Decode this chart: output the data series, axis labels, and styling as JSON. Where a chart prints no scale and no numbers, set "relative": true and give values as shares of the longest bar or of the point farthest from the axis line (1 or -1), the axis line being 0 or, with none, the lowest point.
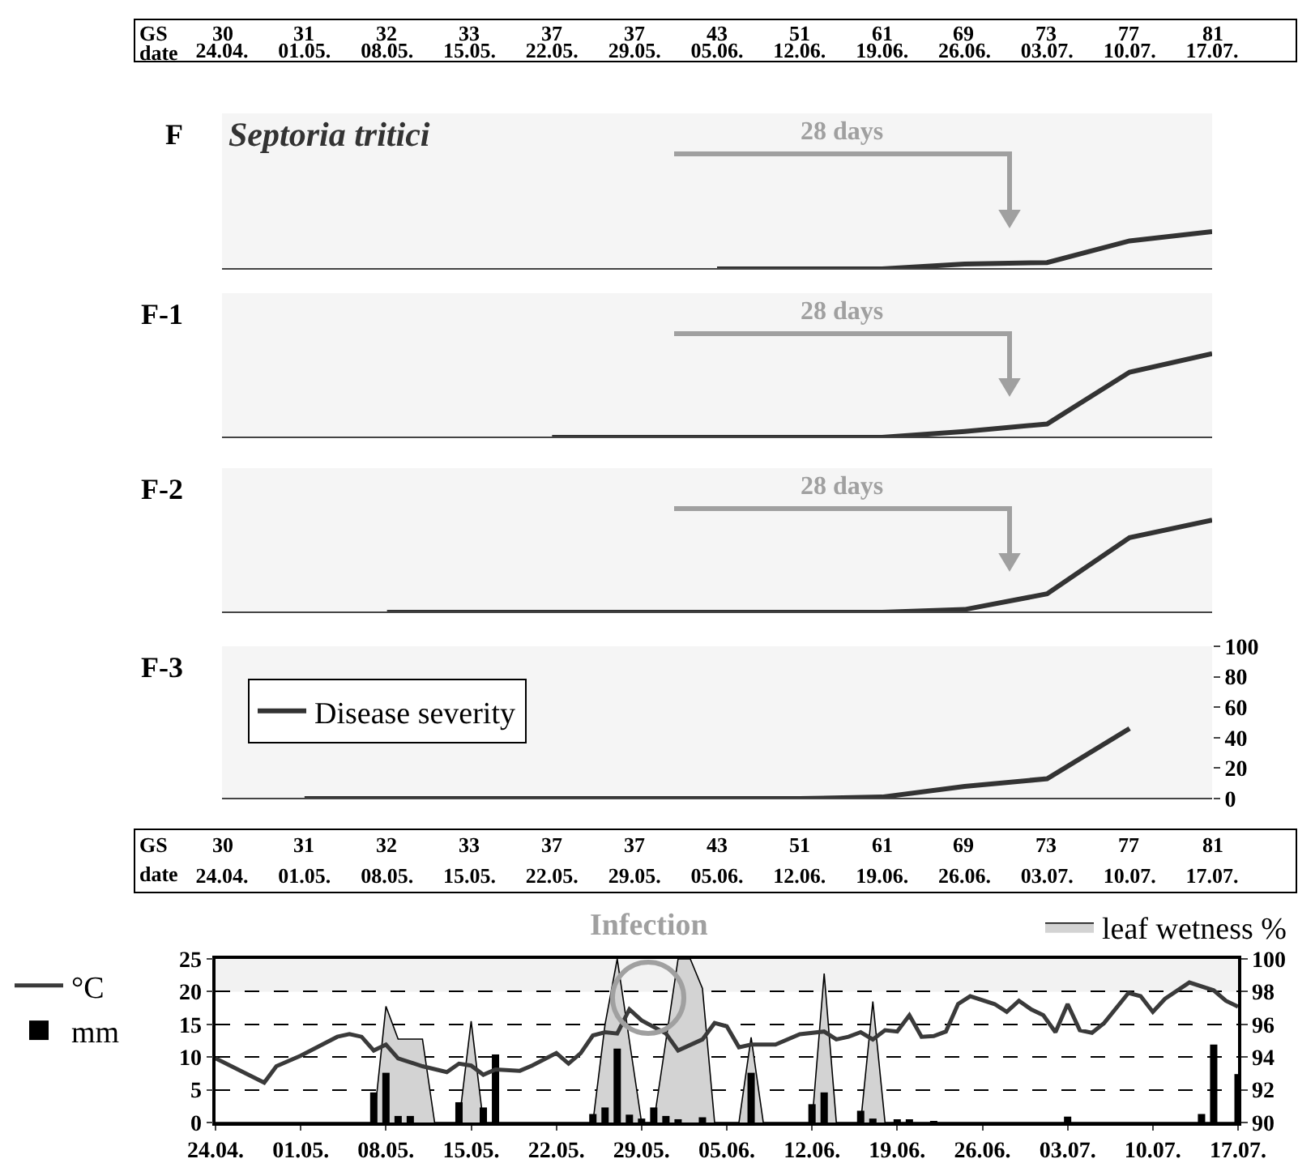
{
  "chart_data": [
    {
      "type": "line",
      "title": "F",
      "subtitle": "Septoria tritici",
      "categories": [
        "24.04.",
        "01.05.",
        "08.05.",
        "15.05.",
        "22.05.",
        "29.05.",
        "05.06.",
        "12.06.",
        "19.06.",
        "26.06.",
        "03.07.",
        "10.07.",
        "17.07."
      ],
      "series": [
        {
          "color": "#333333",
          "values": [
            null,
            null,
            null,
            null,
            null,
            null,
            0,
            0,
            0,
            0.13,
            0.17,
            0.75,
            1
          ]
        }
      ],
      "relative": true,
      "tick_labels": "x",
      "annotations": [
        "28 days",
        "GS",
        "date",
        "30",
        "31",
        "32",
        "33",
        "37",
        "37",
        "43",
        "51",
        "61",
        "69",
        "73",
        "77",
        "81"
      ]
    },
    {
      "type": "line",
      "title": "F-1",
      "categories": [
        "24.04.",
        "01.05.",
        "08.05.",
        "15.05.",
        "22.05.",
        "29.05.",
        "05.06.",
        "12.06.",
        "19.06.",
        "26.06.",
        "03.07.",
        "10.07.",
        "17.07."
      ],
      "series": [
        {
          "color": "#333333",
          "values": [
            null,
            null,
            null,
            null,
            0,
            0,
            0,
            0,
            0,
            0.07,
            0.16,
            0.78,
            1
          ]
        }
      ],
      "relative": true,
      "tick_labels": false,
      "annotations": [
        "28 days"
      ]
    },
    {
      "type": "line",
      "title": "F-2",
      "categories": [
        "24.04.",
        "01.05.",
        "08.05.",
        "15.05.",
        "22.05.",
        "29.05.",
        "05.06.",
        "12.06.",
        "19.06.",
        "26.06.",
        "03.07.",
        "10.07.",
        "17.07."
      ],
      "series": [
        {
          "color": "#333333",
          "values": [
            null,
            null,
            0,
            0,
            0,
            0,
            0,
            0,
            0,
            0.03,
            0.2,
            0.81,
            1
          ]
        }
      ],
      "relative": true,
      "tick_labels": false,
      "annotations": [
        "28 days"
      ]
    },
    {
      "type": "line",
      "title": "F-3",
      "categories": [
        "24.04.",
        "01.05.",
        "08.05.",
        "15.05.",
        "22.05.",
        "29.05.",
        "05.06.",
        "12.06.",
        "19.06.",
        "26.06.",
        "03.07.",
        "10.07.",
        "17.07."
      ],
      "series": [
        {
          "name": "Disease severity",
          "color": "#333333",
          "values": [
            null,
            0,
            0,
            0,
            0,
            0,
            0,
            0,
            1,
            8,
            13,
            46,
            null
          ]
        }
      ],
      "ylim": [
        0,
        100
      ],
      "yticks": [
        0,
        20,
        40,
        60,
        80,
        100
      ],
      "legend": "top left",
      "annotations": [
        "GS",
        "date",
        "30",
        "31",
        "32",
        "33",
        "37",
        "37",
        "43",
        "51",
        "61",
        "69",
        "73",
        "77",
        "81"
      ]
    },
    {
      "type": "line",
      "legend": "left",
      "grid": "y",
      "xlim": [
        "--04-24",
        "--07-17"
      ],
      "xticks": [
        {
          "value": "--04-24",
          "label": "24.04."
        },
        {
          "value": "--05-01",
          "label": "01.05."
        },
        {
          "value": "--05-08",
          "label": "08.05."
        },
        {
          "value": "--05-15",
          "label": "15.05."
        },
        {
          "value": "--05-22",
          "label": "22.05."
        },
        {
          "value": "--05-29",
          "label": "29.05."
        },
        {
          "value": "--06-05",
          "label": "05.06."
        },
        {
          "value": "--06-12",
          "label": "12.06."
        },
        {
          "value": "--06-19",
          "label": "19.06."
        },
        {
          "value": "--06-26",
          "label": "26.06."
        },
        {
          "value": "--07-03",
          "label": "03.07."
        },
        {
          "value": "--07-10",
          "label": "10.07."
        },
        {
          "value": "--07-17",
          "label": "17.07."
        }
      ],
      "ylim": [
        0,
        25
      ],
      "yticks": [
        0,
        5,
        10,
        15,
        20,
        25
      ],
      "y2lim": [
        90,
        100
      ],
      "y2ticks": [
        90,
        92,
        94,
        96,
        98,
        100
      ],
      "bands": [
        {
          "axis": "y",
          "from": 20,
          "to": 25,
          "color": "#f2f2f2"
        }
      ],
      "annotations": [
        "Infection"
      ],
      "series": [
        {
          "name": "leaf wetness %",
          "type": "area",
          "axis": "y2",
          "color": "#d3d3d3",
          "x": [
            "--04-24",
            "--05-07",
            "--05-08",
            "--05-09",
            "--05-11",
            "--05-12",
            "--05-14",
            "--05-15",
            "--05-16",
            "--05-25",
            "--05-26",
            "--05-27",
            "--05-28",
            "--05-29",
            "--05-30",
            "--05-31",
            "--06-01",
            "--06-02",
            "--06-03",
            "--06-04",
            "--06-06",
            "--06-07",
            "--06-08",
            "--06-12",
            "--06-13",
            "--06-14",
            "--06-16",
            "--06-17",
            "--06-18",
            "--07-17"
          ],
          "values": [
            90,
            90,
            97.1,
            95.1,
            95.1,
            90,
            90,
            96.2,
            90,
            90,
            96,
            100,
            95,
            90,
            90,
            95,
            100,
            100,
            98.2,
            90,
            90,
            95.2,
            90,
            90,
            99.1,
            90,
            90,
            97.4,
            90,
            90
          ]
        },
        {
          "name": "mm",
          "type": "bar",
          "color": "#000000",
          "x": [
            "--05-07",
            "--05-08",
            "--05-09",
            "--05-10",
            "--05-14",
            "--05-16",
            "--05-17",
            "--05-25",
            "--05-26",
            "--05-27",
            "--05-28",
            "--05-29",
            "--05-30",
            "--05-31",
            "--06-01",
            "--06-03",
            "--06-07",
            "--06-12",
            "--06-13",
            "--06-16",
            "--06-17",
            "--06-19",
            "--06-20",
            "--06-22",
            "--07-03",
            "--07-14",
            "--07-15",
            "--07-17"
          ],
          "values": [
            4.6,
            7.6,
            1.0,
            1.0,
            3.1,
            2.3,
            10.4,
            1.3,
            2.3,
            11.3,
            1.2,
            0.6,
            2.3,
            1.0,
            0.5,
            0.8,
            7.6,
            2.8,
            4.6,
            1.8,
            0.6,
            0.4,
            0.4,
            0.2,
            0.9,
            1.3,
            11.9,
            7.4
          ]
        },
        {
          "name": "°C",
          "type": "line",
          "color": "#3a3a3a",
          "x": [
            "--04-24",
            "--04-28",
            "--04-29",
            "--05-01",
            "--05-04",
            "--05-05",
            "--05-06",
            "--05-07",
            "--05-08",
            "--05-09",
            "--05-11",
            "--05-13",
            "--05-14",
            "--05-15",
            "--05-16",
            "--05-17",
            "--05-19",
            "--05-20",
            "--05-22",
            "--05-23",
            "--05-24",
            "--05-25",
            "--05-26",
            "--05-27",
            "--05-28",
            "--05-29",
            "--05-31",
            "--06-01",
            "--06-03",
            "--06-04",
            "--06-05",
            "--06-06",
            "--06-07",
            "--06-09",
            "--06-11",
            "--06-13",
            "--06-14",
            "--06-15",
            "--06-16",
            "--06-17",
            "--06-18",
            "--06-19",
            "--06-20",
            "--06-21",
            "--06-22",
            "--06-23",
            "--06-24",
            "--06-25",
            "--06-27",
            "--06-28",
            "--06-29",
            "--06-30",
            "--07-01",
            "--07-02",
            "--07-03",
            "--07-04",
            "--07-05",
            "--07-06",
            "--07-08",
            "--07-09",
            "--07-10",
            "--07-11",
            "--07-13",
            "--07-15",
            "--07-16",
            "--07-17"
          ],
          "values": [
            9.8,
            6.1,
            8.6,
            10.2,
            13.1,
            13.5,
            13.1,
            11.0,
            11.9,
            9.8,
            8.6,
            7.7,
            9.0,
            8.7,
            7.3,
            8.1,
            7.9,
            8.7,
            10.6,
            9.0,
            10.6,
            13.3,
            13.8,
            13.6,
            17.3,
            15.6,
            13.6,
            11.0,
            12.7,
            15.2,
            14.7,
            11.5,
            11.9,
            11.9,
            13.5,
            13.9,
            12.7,
            13.1,
            13.8,
            12.7,
            14.1,
            13.9,
            16.4,
            13.1,
            13.2,
            13.9,
            18.1,
            19.3,
            18.1,
            16.9,
            18.6,
            17.3,
            16.4,
            13.8,
            18.1,
            14.1,
            13.7,
            15.2,
            19.8,
            19.3,
            16.9,
            18.9,
            21.4,
            20.2,
            18.6,
            17.7
          ]
        }
      ]
    }
  ]
}
